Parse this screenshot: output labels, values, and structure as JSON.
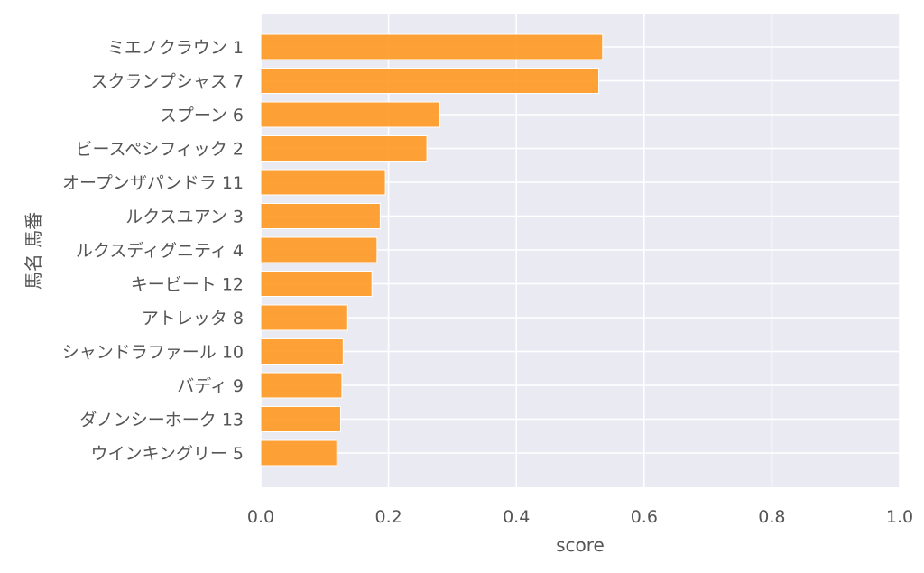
{
  "chart_data": {
    "type": "bar",
    "orientation": "horizontal",
    "title": "",
    "xlabel": "score",
    "ylabel": "馬名 馬番",
    "xlim": [
      0,
      1.0
    ],
    "xticks": [
      "0.0",
      "0.2",
      "0.4",
      "0.6",
      "0.8",
      "1.0"
    ],
    "grid": true,
    "bar_color": "#ff9922",
    "background_color": "#eaeaf2",
    "categories": [
      "ミエノクラウン 1",
      "スクランプシャス 7",
      "スプーン 6",
      "ビースペシフィック 2",
      "オープンザパンドラ 11",
      "ルクスユアン 3",
      "ルクスディグニティ 4",
      "キービート 12",
      "アトレッタ 8",
      "シャンドラファール 10",
      "バディ 9",
      "ダノンシーホーク 13",
      "ウインキングリー 5"
    ],
    "values": [
      0.535,
      0.529,
      0.28,
      0.26,
      0.195,
      0.187,
      0.182,
      0.174,
      0.136,
      0.129,
      0.127,
      0.125,
      0.119
    ]
  }
}
